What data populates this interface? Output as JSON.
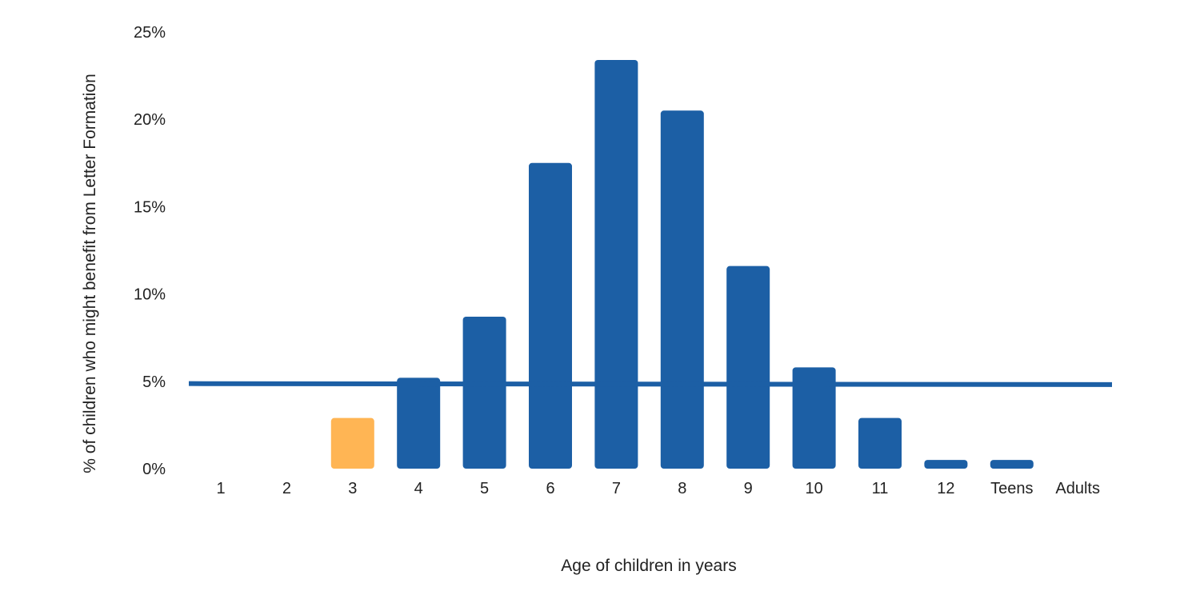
{
  "chart_data": {
    "type": "bar",
    "title": "",
    "xlabel": "Age of children in years",
    "ylabel": "% of children who might benefit from Letter Formation",
    "categories": [
      "1",
      "2",
      "3",
      "4",
      "5",
      "6",
      "7",
      "8",
      "9",
      "10",
      "11",
      "12",
      "Teens",
      "Adults"
    ],
    "values": [
      0,
      0,
      2.9,
      5.2,
      8.7,
      17.5,
      23.4,
      20.5,
      11.6,
      5.8,
      2.9,
      0.5,
      0.5,
      0
    ],
    "ylim": [
      0,
      25
    ],
    "yticks": [
      0,
      5,
      10,
      15,
      20,
      25
    ],
    "ytick_labels": [
      "0%",
      "5%",
      "10%",
      "15%",
      "20%",
      "25%"
    ],
    "grid": false,
    "legend": "none",
    "reference_line": {
      "value": 4.85,
      "color": "#1c5fa5"
    },
    "colors": {
      "bar": "#1c5fa5",
      "highlight": "#ffb554"
    },
    "highlight_category": "3"
  }
}
